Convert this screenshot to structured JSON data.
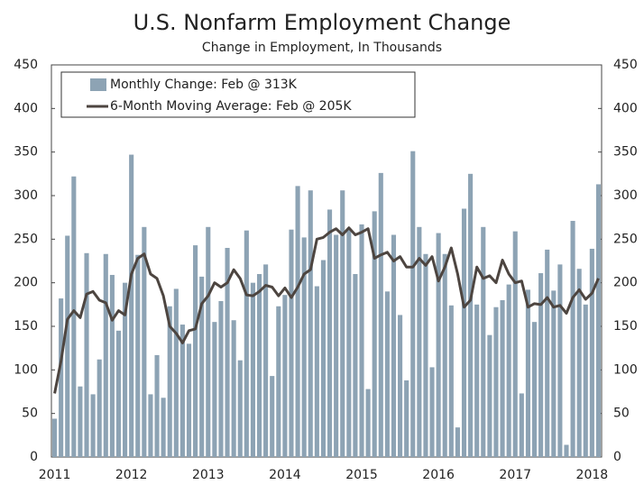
{
  "chart_data": {
    "type": "bar_line",
    "title": "U.S. Nonfarm Employment Change",
    "subtitle": "Change in Employment, In Thousands",
    "categories": [
      "2011",
      null,
      null,
      null,
      null,
      null,
      null,
      null,
      null,
      null,
      null,
      null,
      "2012",
      null,
      null,
      null,
      null,
      null,
      null,
      null,
      null,
      null,
      null,
      null,
      "2013",
      null,
      null,
      null,
      null,
      null,
      null,
      null,
      null,
      null,
      null,
      null,
      "2014",
      null,
      null,
      null,
      null,
      null,
      null,
      null,
      null,
      null,
      null,
      null,
      "2015",
      null,
      null,
      null,
      null,
      null,
      null,
      null,
      null,
      null,
      null,
      null,
      "2016",
      null,
      null,
      null,
      null,
      null,
      null,
      null,
      null,
      null,
      null,
      null,
      "2017",
      null,
      null,
      null,
      null,
      null,
      null,
      null,
      null,
      null,
      null,
      null,
      "2018",
      null
    ],
    "series": [
      {
        "name": "Monthly Change: Feb @ 313K",
        "kind": "bar",
        "color": "#8da3b4",
        "values": [
          44,
          182,
          254,
          322,
          81,
          234,
          72,
          112,
          233,
          209,
          145,
          200,
          347,
          232,
          264,
          72,
          117,
          68,
          173,
          193,
          152,
          130,
          243,
          207,
          264,
          155,
          179,
          240,
          157,
          111,
          260,
          200,
          210,
          221,
          93,
          173,
          186,
          261,
          311,
          252,
          306,
          196,
          226,
          284,
          255,
          306,
          261,
          210,
          267,
          78,
          282,
          326,
          190,
          255,
          163,
          88,
          351,
          264,
          233,
          103,
          257,
          233,
          174,
          34,
          285,
          325,
          175,
          264,
          140,
          172,
          180,
          198,
          259,
          73,
          192,
          155,
          211,
          238,
          191,
          221,
          14,
          271,
          216,
          175,
          239,
          313
        ]
      },
      {
        "name": "6-Month Moving Average: Feb @ 205K",
        "kind": "line",
        "color": "#4d4540",
        "values": [
          73,
          110,
          158,
          168,
          160,
          187,
          190,
          180,
          177,
          157,
          168,
          163,
          210,
          228,
          233,
          210,
          205,
          185,
          150,
          142,
          131,
          145,
          147,
          176,
          185,
          200,
          195,
          200,
          215,
          205,
          186,
          185,
          190,
          197,
          195,
          185,
          194,
          183,
          195,
          210,
          215,
          250,
          252,
          258,
          262,
          255,
          263,
          255,
          258,
          262,
          228,
          232,
          235,
          225,
          230,
          218,
          218,
          228,
          220,
          230,
          202,
          218,
          240,
          210,
          172,
          180,
          218,
          205,
          208,
          200,
          226,
          210,
          200,
          202,
          172,
          176,
          175,
          183,
          172,
          174,
          165,
          183,
          192,
          181,
          188,
          205
        ]
      }
    ],
    "ylim": [
      0,
      450
    ],
    "yticks": [
      0,
      50,
      100,
      150,
      200,
      250,
      300,
      350,
      400,
      450
    ],
    "y2lim": [
      0,
      450
    ],
    "y2ticks": [
      0,
      50,
      100,
      150,
      200,
      250,
      300,
      350,
      400,
      450
    ],
    "legend": "upper left"
  }
}
